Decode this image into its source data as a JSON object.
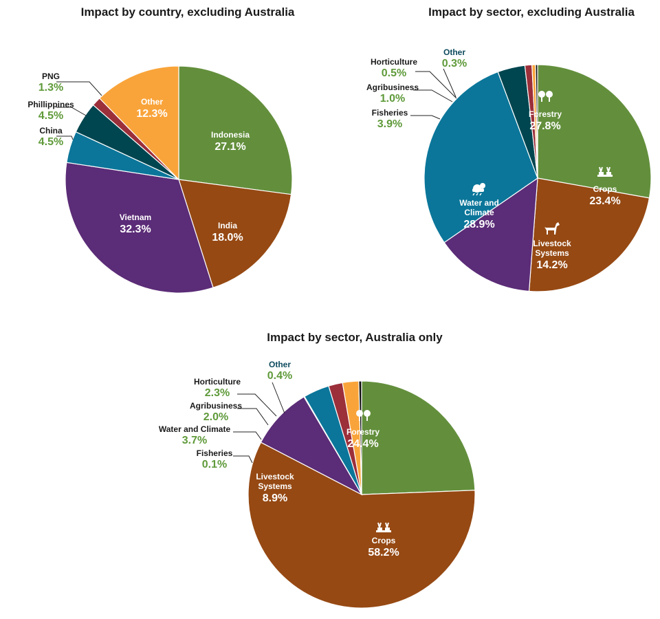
{
  "chart_data": [
    {
      "type": "pie",
      "title": "Impact by country, excluding Australia",
      "slices": [
        {
          "name": "Indonesia",
          "value": 27.1,
          "label": "27.1%",
          "color": "#638f3c",
          "inside": true
        },
        {
          "name": "India",
          "value": 18.0,
          "label": "18.0%",
          "color": "#964913",
          "inside": true
        },
        {
          "name": "Vietnam",
          "value": 32.3,
          "label": "32.3%",
          "color": "#5b2c77",
          "inside": true
        },
        {
          "name": "China",
          "value": 4.5,
          "label": "4.5%",
          "color": "#0b769a",
          "inside": false
        },
        {
          "name": "Phillippines",
          "value": 4.5,
          "label": "4.5%",
          "color": "#004650",
          "inside": false
        },
        {
          "name": "PNG",
          "value": 1.3,
          "label": "1.3%",
          "color": "#9b2f3a",
          "inside": false
        },
        {
          "name": "Other",
          "value": 12.3,
          "label": "12.3%",
          "color": "#f9a43a",
          "inside": true
        }
      ]
    },
    {
      "type": "pie",
      "title": "Impact by sector, excluding Australia",
      "slices": [
        {
          "name": "Forestry",
          "value": 27.8,
          "label": "27.8%",
          "color": "#638f3c",
          "inside": true,
          "icon": "trees-icon"
        },
        {
          "name": "Crops",
          "value": 23.4,
          "label": "23.4%",
          "color": "#964913",
          "inside": true,
          "icon": "crops-icon"
        },
        {
          "name": "Livestock Systems",
          "value": 14.2,
          "label": "14.2%",
          "color": "#5b2c77",
          "inside": true,
          "icon": "goat-icon"
        },
        {
          "name": "Water and Climate",
          "value": 28.9,
          "label": "28.9%",
          "color": "#0b769a",
          "inside": true,
          "icon": "weather-icon"
        },
        {
          "name": "Fisheries",
          "value": 3.9,
          "label": "3.9%",
          "color": "#004650",
          "inside": false
        },
        {
          "name": "Agribusiness",
          "value": 1.0,
          "label": "1.0%",
          "color": "#9b2f3a",
          "inside": false
        },
        {
          "name": "Horticulture",
          "value": 0.5,
          "label": "0.5%",
          "color": "#f9a43a",
          "inside": false
        },
        {
          "name": "Other",
          "value": 0.3,
          "label": "0.3%",
          "color": "#111111",
          "inside": false
        }
      ]
    },
    {
      "type": "pie",
      "title": "Impact by sector, Australia only",
      "slices": [
        {
          "name": "Forestry",
          "value": 24.4,
          "label": "24.4%",
          "color": "#638f3c",
          "inside": true,
          "icon": "trees-icon"
        },
        {
          "name": "Crops",
          "value": 58.2,
          "label": "58.2%",
          "color": "#964913",
          "inside": true,
          "icon": "crops-icon"
        },
        {
          "name": "Livestock Systems",
          "value": 8.9,
          "label": "8.9%",
          "color": "#5b2c77",
          "inside": true
        },
        {
          "name": "Fisheries",
          "value": 0.1,
          "label": "0.1%",
          "color": "#004650",
          "inside": false
        },
        {
          "name": "Water and Climate",
          "value": 3.7,
          "label": "3.7%",
          "color": "#0b769a",
          "inside": false
        },
        {
          "name": "Agribusiness",
          "value": 2.0,
          "label": "2.0%",
          "color": "#9b2f3a",
          "inside": false
        },
        {
          "name": "Horticulture",
          "value": 2.3,
          "label": "2.3%",
          "color": "#f9a43a",
          "inside": false
        },
        {
          "name": "Other",
          "value": 0.4,
          "label": "0.4%",
          "color": "#111111",
          "inside": false
        }
      ]
    }
  ]
}
